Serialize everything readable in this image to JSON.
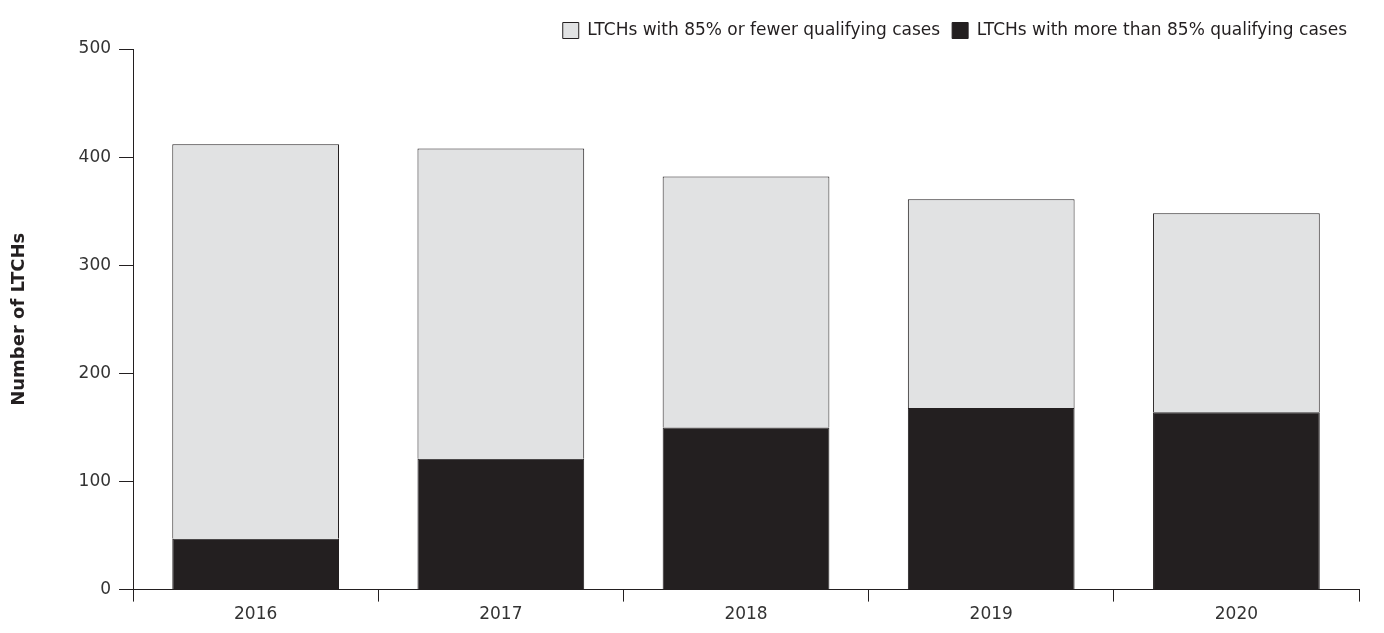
{
  "chart_data": {
    "type": "bar",
    "ylabel": "Number of LTCHs",
    "categories": [
      "2016",
      "2017",
      "2018",
      "2019",
      "2020"
    ],
    "stacked": true,
    "series": [
      {
        "name": "LTCHs with more than 85% qualifying cases",
        "color": "#231f20",
        "values": [
          47,
          121,
          150,
          168,
          164
        ]
      },
      {
        "name": "LTCHs with 85% or fewer qualifying cases",
        "color": "#e1e2e3",
        "values": [
          365,
          287,
          232,
          193,
          184
        ]
      }
    ],
    "ylim": [
      0,
      500
    ],
    "yticks": [
      0,
      100,
      200,
      300,
      400,
      500
    ],
    "grid": false,
    "legend": "top right"
  }
}
